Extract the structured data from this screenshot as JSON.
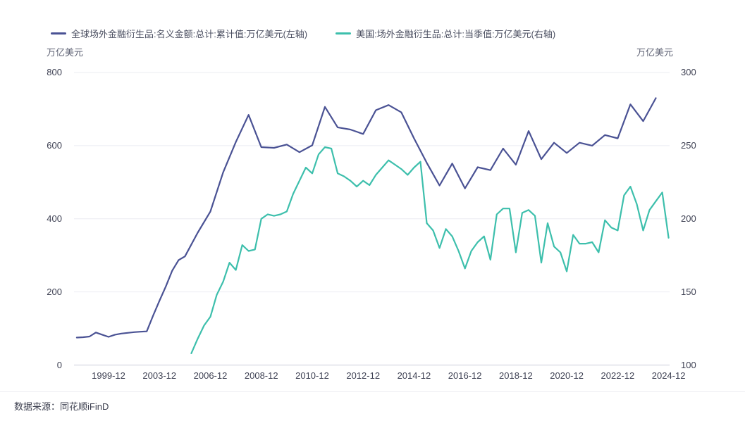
{
  "footer": {
    "source": "数据来源：同花顺iFinD"
  },
  "chart_data": {
    "type": "line",
    "title": "",
    "x_axis": {
      "note": "category axis: semiannual slots 1997-06..2005-12 (k=0..17), quarterly slots 2006-03..2024-12 (k=18..93)",
      "ticks": [
        {
          "k": 5,
          "label": "1999-12"
        },
        {
          "k": 13,
          "label": "2003-12"
        },
        {
          "k": 21,
          "label": "2006-12"
        },
        {
          "k": 29,
          "label": "2008-12"
        },
        {
          "k": 37,
          "label": "2010-12"
        },
        {
          "k": 45,
          "label": "2012-12"
        },
        {
          "k": 53,
          "label": "2014-12"
        },
        {
          "k": 61,
          "label": "2016-12"
        },
        {
          "k": 69,
          "label": "2018-12"
        },
        {
          "k": 77,
          "label": "2020-12"
        },
        {
          "k": 85,
          "label": "2022-12"
        },
        {
          "k": 93,
          "label": "2024-12"
        }
      ]
    },
    "left_axis": {
      "unit": "万亿美元",
      "min": 0,
      "max": 800,
      "ticks": [
        800,
        600,
        400,
        200,
        0
      ]
    },
    "right_axis": {
      "unit": "万亿美元",
      "min": 100,
      "max": 300,
      "ticks": [
        300,
        250,
        200,
        150,
        100
      ]
    },
    "grid": {
      "line_color": "#ebecf2",
      "axis_line_color": "#c9ccd9"
    },
    "series": [
      {
        "name": "全球场外金融衍生品:名义金额:总计:累计值:万亿美元(左轴)",
        "axis": "left",
        "color": "#4a5294",
        "points": [
          [
            0,
            "1997-06",
            75
          ],
          [
            1,
            "1997-12",
            76
          ],
          [
            2,
            "1998-06",
            78
          ],
          [
            3,
            "1998-12",
            89
          ],
          [
            4,
            "1999-06",
            83
          ],
          [
            5,
            "1999-12",
            77
          ],
          [
            6,
            "2000-06",
            83
          ],
          [
            7,
            "2000-12",
            86
          ],
          [
            8,
            "2001-06",
            88
          ],
          [
            9,
            "2001-12",
            90
          ],
          [
            10,
            "2002-06",
            91
          ],
          [
            11,
            "2002-12",
            92
          ],
          [
            12,
            "2003-06",
            135
          ],
          [
            13,
            "2003-12",
            176
          ],
          [
            14,
            "2004-06",
            215
          ],
          [
            15,
            "2004-12",
            258
          ],
          [
            16,
            "2005-06",
            287
          ],
          [
            17,
            "2005-12",
            297
          ],
          [
            19,
            "2006-06",
            362
          ],
          [
            21,
            "2006-12",
            420
          ],
          [
            23,
            "2007-06",
            527
          ],
          [
            25,
            "2007-12",
            610
          ],
          [
            27,
            "2008-06",
            684
          ],
          [
            29,
            "2008-12",
            596
          ],
          [
            31,
            "2009-06",
            594
          ],
          [
            33,
            "2009-12",
            603
          ],
          [
            35,
            "2010-06",
            582
          ],
          [
            37,
            "2010-12",
            601
          ],
          [
            39,
            "2011-06",
            706
          ],
          [
            41,
            "2011-12",
            650
          ],
          [
            43,
            "2012-06",
            644
          ],
          [
            45,
            "2012-12",
            632
          ],
          [
            47,
            "2013-06",
            697
          ],
          [
            49,
            "2013-12",
            711
          ],
          [
            51,
            "2014-06",
            691
          ],
          [
            53,
            "2014-12",
            620
          ],
          [
            55,
            "2015-06",
            553
          ],
          [
            57,
            "2015-12",
            491
          ],
          [
            59,
            "2016-06",
            551
          ],
          [
            61,
            "2016-12",
            483
          ],
          [
            63,
            "2017-06",
            541
          ],
          [
            65,
            "2017-12",
            533
          ],
          [
            67,
            "2018-06",
            592
          ],
          [
            69,
            "2018-12",
            548
          ],
          [
            71,
            "2019-06",
            640
          ],
          [
            73,
            "2019-12",
            563
          ],
          [
            75,
            "2020-06",
            608
          ],
          [
            77,
            "2020-12",
            580
          ],
          [
            79,
            "2021-06",
            608
          ],
          [
            81,
            "2021-12",
            600
          ],
          [
            83,
            "2022-06",
            629
          ],
          [
            85,
            "2022-12",
            620
          ],
          [
            87,
            "2023-06",
            713
          ],
          [
            89,
            "2023-12",
            667
          ],
          [
            91,
            "2024-06",
            730
          ]
        ]
      },
      {
        "name": "美国:场外金融衍生品:总计:当季值:万亿美元(右轴)",
        "axis": "right",
        "color": "#3dbfac",
        "points": [
          [
            18,
            "2006-03",
            108
          ],
          [
            19,
            "2006-06",
            118
          ],
          [
            20,
            "2006-09",
            127
          ],
          [
            21,
            "2006-12",
            133
          ],
          [
            22,
            "2007-03",
            148
          ],
          [
            23,
            "2007-06",
            157
          ],
          [
            24,
            "2007-09",
            170
          ],
          [
            25,
            "2007-12",
            165
          ],
          [
            26,
            "2008-03",
            182
          ],
          [
            27,
            "2008-06",
            178
          ],
          [
            28,
            "2008-09",
            179
          ],
          [
            29,
            "2008-12",
            200
          ],
          [
            30,
            "2009-03",
            203
          ],
          [
            31,
            "2009-06",
            202
          ],
          [
            32,
            "2009-09",
            203
          ],
          [
            33,
            "2009-12",
            205
          ],
          [
            34,
            "2010-03",
            217
          ],
          [
            35,
            "2010-06",
            226
          ],
          [
            36,
            "2010-09",
            235
          ],
          [
            37,
            "2010-12",
            231
          ],
          [
            38,
            "2011-03",
            244
          ],
          [
            39,
            "2011-06",
            249
          ],
          [
            40,
            "2011-09",
            248
          ],
          [
            41,
            "2011-12",
            231
          ],
          [
            42,
            "2012-03",
            229
          ],
          [
            43,
            "2012-06",
            226
          ],
          [
            44,
            "2012-09",
            222
          ],
          [
            45,
            "2012-12",
            226
          ],
          [
            46,
            "2013-03",
            223
          ],
          [
            47,
            "2013-06",
            230
          ],
          [
            48,
            "2013-09",
            235
          ],
          [
            49,
            "2013-12",
            240
          ],
          [
            50,
            "2014-03",
            237
          ],
          [
            51,
            "2014-06",
            234
          ],
          [
            52,
            "2014-09",
            230
          ],
          [
            53,
            "2014-12",
            235
          ],
          [
            54,
            "2015-03",
            239
          ],
          [
            55,
            "2015-06",
            197
          ],
          [
            56,
            "2015-09",
            192
          ],
          [
            57,
            "2015-12",
            180
          ],
          [
            58,
            "2016-03",
            193
          ],
          [
            59,
            "2016-06",
            188
          ],
          [
            60,
            "2016-09",
            178
          ],
          [
            61,
            "2016-12",
            166
          ],
          [
            62,
            "2017-03",
            178
          ],
          [
            63,
            "2017-06",
            184
          ],
          [
            64,
            "2017-09",
            188
          ],
          [
            65,
            "2017-12",
            172
          ],
          [
            66,
            "2018-03",
            203
          ],
          [
            67,
            "2018-06",
            207
          ],
          [
            68,
            "2018-09",
            207
          ],
          [
            69,
            "2018-12",
            177
          ],
          [
            70,
            "2019-03",
            204
          ],
          [
            71,
            "2019-06",
            206
          ],
          [
            72,
            "2019-09",
            202
          ],
          [
            73,
            "2019-12",
            170
          ],
          [
            74,
            "2020-03",
            197
          ],
          [
            75,
            "2020-06",
            181
          ],
          [
            76,
            "2020-09",
            177
          ],
          [
            77,
            "2020-12",
            164
          ],
          [
            78,
            "2021-03",
            189
          ],
          [
            79,
            "2021-06",
            183
          ],
          [
            80,
            "2021-09",
            183
          ],
          [
            81,
            "2021-12",
            184
          ],
          [
            82,
            "2022-03",
            177
          ],
          [
            83,
            "2022-06",
            199
          ],
          [
            84,
            "2022-09",
            194
          ],
          [
            85,
            "2022-12",
            192
          ],
          [
            86,
            "2023-03",
            216
          ],
          [
            87,
            "2023-06",
            222
          ],
          [
            88,
            "2023-09",
            210
          ],
          [
            89,
            "2023-12",
            192
          ],
          [
            90,
            "2024-03",
            206
          ],
          [
            91,
            "2024-06",
            212
          ],
          [
            92,
            "2024-09",
            218
          ],
          [
            93,
            "2024-12",
            187
          ]
        ]
      }
    ]
  }
}
